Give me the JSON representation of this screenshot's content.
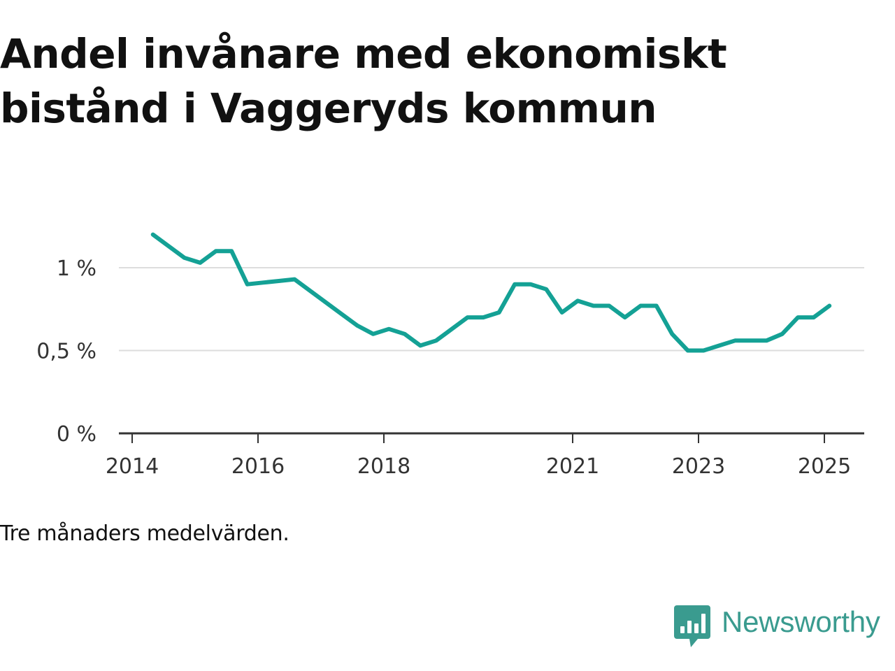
{
  "title": "Andel invånare med ekonomiskt bistånd i Vaggeryds kommun",
  "caption": "Tre månaders medelvärden.",
  "brand": {
    "name": "Newsworthy",
    "icon": "bar-chart-speech-bubble-icon",
    "color": "#3a9b8f"
  },
  "chart_data": {
    "type": "line",
    "title": "Andel invånare med ekonomiskt bistånd i Vaggeryds kommun",
    "xlabel": "",
    "ylabel": "",
    "x_ticks": [
      {
        "label": "2014",
        "value": 2014.0
      },
      {
        "label": "2016",
        "value": 2016.0
      },
      {
        "label": "2018",
        "value": 2018.0
      },
      {
        "label": "2021",
        "value": 2021.0
      },
      {
        "label": "2023",
        "value": 2023.0
      },
      {
        "label": "2025",
        "value": 2025.0
      }
    ],
    "y_ticks": [
      {
        "label": "0 %",
        "value": 0
      },
      {
        "label": "0,5 %",
        "value": 0.5
      },
      {
        "label": "1 %",
        "value": 1.0
      }
    ],
    "xlim": [
      2014.0,
      2026.0
    ],
    "ylim": [
      0,
      1.4
    ],
    "grid": "horizontal",
    "line_color": "#14a195",
    "series": [
      {
        "x": [
          2014.33,
          2014.58,
          2014.83,
          2015.08,
          2015.33,
          2015.58,
          2015.83,
          2016.08,
          2016.33,
          2016.58,
          2016.83,
          2017.08,
          2017.33,
          2017.58,
          2017.83,
          2018.08,
          2018.33,
          2018.58,
          2018.83,
          2019.08,
          2019.33,
          2019.58,
          2019.83,
          2020.08,
          2020.33,
          2020.58,
          2020.83,
          2021.08,
          2021.33,
          2021.58,
          2021.83,
          2022.08,
          2022.33,
          2022.58,
          2022.83,
          2023.08,
          2023.33,
          2023.58,
          2023.83,
          2024.08,
          2024.33,
          2024.58,
          2024.83,
          2025.08
        ],
        "y": [
          1.2,
          1.13,
          1.06,
          1.03,
          1.1,
          1.1,
          0.9,
          0.91,
          0.92,
          0.93,
          0.86,
          0.79,
          0.72,
          0.65,
          0.6,
          0.63,
          0.6,
          0.53,
          0.56,
          0.63,
          0.7,
          0.7,
          0.73,
          0.9,
          0.9,
          0.87,
          0.73,
          0.8,
          0.77,
          0.77,
          0.7,
          0.77,
          0.77,
          0.6,
          0.5,
          0.5,
          0.53,
          0.56,
          0.56,
          0.56,
          0.6,
          0.7,
          0.7,
          0.77
        ]
      }
    ]
  }
}
